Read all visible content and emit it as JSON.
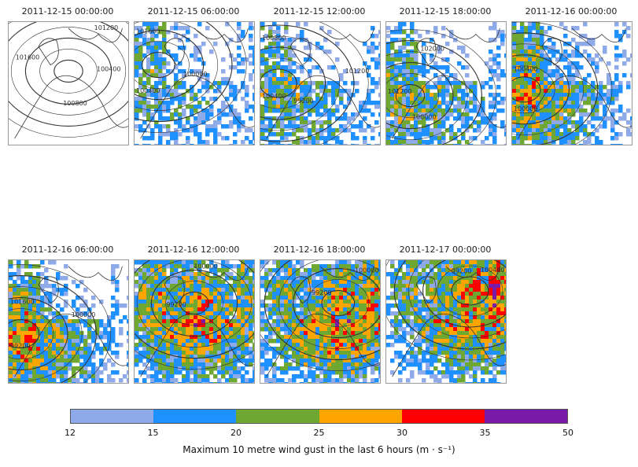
{
  "panels": [
    {
      "title": "2011-12-15 00:00:00",
      "gust": 0.0,
      "storm": [
        0.5,
        0.4
      ],
      "labels": [
        "100400",
        "100800",
        "101600",
        "101200"
      ]
    },
    {
      "title": "2011-12-15 06:00:00",
      "gust": 0.3,
      "storm": [
        0.2,
        0.35
      ],
      "labels": [
        "100000",
        "100400",
        "101600"
      ]
    },
    {
      "title": "2011-12-15 12:00:00",
      "gust": 0.35,
      "storm": [
        0.15,
        0.5
      ],
      "labels": [
        "99200",
        "100400",
        "100800",
        "101200"
      ]
    },
    {
      "title": "2011-12-15 18:00:00",
      "gust": 0.4,
      "storm": [
        0.2,
        0.6
      ],
      "labels": [
        "100000",
        "101200",
        "102000"
      ]
    },
    {
      "title": "2011-12-16 00:00:00",
      "gust": 0.55,
      "storm": [
        0.1,
        0.55
      ],
      "labels": [
        "100000",
        "100400"
      ]
    },
    {
      "title": "2011-12-16 06:00:00",
      "gust": 0.6,
      "storm": [
        0.1,
        0.6
      ],
      "labels": [
        "99200",
        "101600",
        "100000"
      ]
    },
    {
      "title": "2011-12-16 12:00:00",
      "gust": 0.75,
      "storm": [
        0.5,
        0.35
      ],
      "labels": [
        "99200",
        "100000"
      ]
    },
    {
      "title": "2011-12-16 18:00:00",
      "gust": 0.8,
      "storm": [
        0.65,
        0.35
      ],
      "labels": [
        "99200",
        "100000"
      ]
    },
    {
      "title": "2011-12-17 00:00:00",
      "gust": 0.85,
      "storm": [
        0.7,
        0.25
      ],
      "labels": [
        "99200",
        "100400"
      ]
    }
  ],
  "colorbar": {
    "ticks": [
      "12",
      "15",
      "20",
      "25",
      "30",
      "35",
      "50"
    ],
    "colors": [
      "#8faae8",
      "#1e90ff",
      "#6ea832",
      "#ffa500",
      "#ff0000",
      "#7a1aa8"
    ],
    "label": "Maximum 10 metre wind gust in the last 6 hours (m · s⁻¹)"
  }
}
